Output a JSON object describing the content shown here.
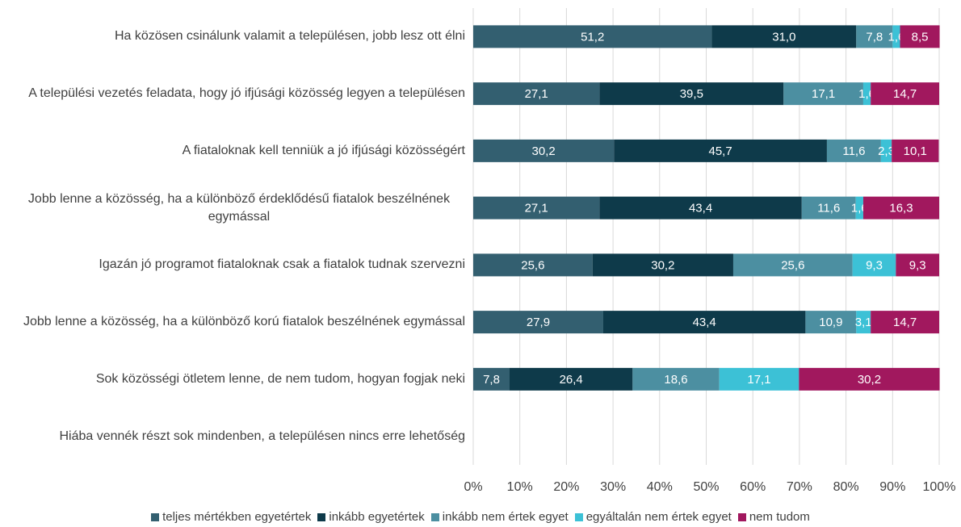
{
  "chart_data": {
    "type": "stacked-bar-horizontal",
    "categories": [
      "Ha közösen csinálunk valamit a településen, jobb lesz ott élni",
      "A települési vezetés feladata, hogy jó ifjúsági közösség legyen a településen",
      "A fiataloknak kell tenniük a jó ifjúsági közösségért",
      "Jobb lenne a közösség, ha a különböző érdeklődésű fiatalok beszélnének egymással",
      "Igazán jó programot fiataloknak csak a fiatalok tudnak szervezni",
      "Jobb lenne a közösség, ha a különböző korú fiatalok beszélnének egymással",
      "Sok közösségi ötletem lenne, de nem tudom, hogyan fogjak neki",
      "Hiába vennék részt sok mindenben, a településen nincs erre lehetőség"
    ],
    "series": [
      {
        "name": "teljes mértékben egyetértek",
        "color": "#335f70",
        "values": [
          51.2,
          27.1,
          30.2,
          27.1,
          25.6,
          27.9,
          7.8,
          null
        ],
        "value_labels": [
          "51,2",
          "27,1",
          "30,2",
          "27,1",
          "25,6",
          "27,9",
          "7,8",
          null
        ]
      },
      {
        "name": "inkább egyetértek",
        "color": "#0e3a4a",
        "values": [
          31.0,
          39.5,
          45.7,
          43.4,
          30.2,
          43.4,
          26.4,
          null
        ],
        "value_labels": [
          "31,0",
          "39,5",
          "45,7",
          "43,4",
          "30,2",
          "43,4",
          "26,4",
          null
        ]
      },
      {
        "name": "inkább nem értek egyet",
        "color": "#4c8fa1",
        "values": [
          7.8,
          17.1,
          11.6,
          11.6,
          25.6,
          10.9,
          18.6,
          null
        ],
        "value_labels": [
          "7,8",
          "17,1",
          "11,6",
          "11,6",
          "25,6",
          "10,9",
          "18,6",
          null
        ]
      },
      {
        "name": "egyáltalán nem értek egyet",
        "color": "#3cc1d6",
        "values": [
          1.6,
          1.6,
          2.3,
          1.6,
          9.3,
          3.1,
          17.1,
          null
        ],
        "value_labels": [
          "1,6",
          "1,6",
          "2,3",
          "1,6",
          "9,3",
          "3,1",
          "17,1",
          null
        ]
      },
      {
        "name": "nem tudom",
        "color": "#a1185e",
        "values": [
          8.5,
          14.7,
          10.1,
          16.3,
          9.3,
          14.7,
          30.2,
          null
        ],
        "value_labels": [
          "8,5",
          "14,7",
          "10,1",
          "16,3",
          "9,3",
          "14,7",
          "30,2",
          null
        ]
      }
    ],
    "xlim": [
      0,
      100
    ],
    "xticks": [
      {
        "value": 0,
        "label": "0%"
      },
      {
        "value": 10,
        "label": "10%"
      },
      {
        "value": 20,
        "label": "20%"
      },
      {
        "value": 30,
        "label": "30%"
      },
      {
        "value": 40,
        "label": "40%"
      },
      {
        "value": 50,
        "label": "50%"
      },
      {
        "value": 60,
        "label": "60%"
      },
      {
        "value": 70,
        "label": "70%"
      },
      {
        "value": 80,
        "label": "80%"
      },
      {
        "value": 90,
        "label": "90%"
      },
      {
        "value": 100,
        "label": "100%"
      }
    ],
    "grid": true,
    "legend": "bottom"
  }
}
